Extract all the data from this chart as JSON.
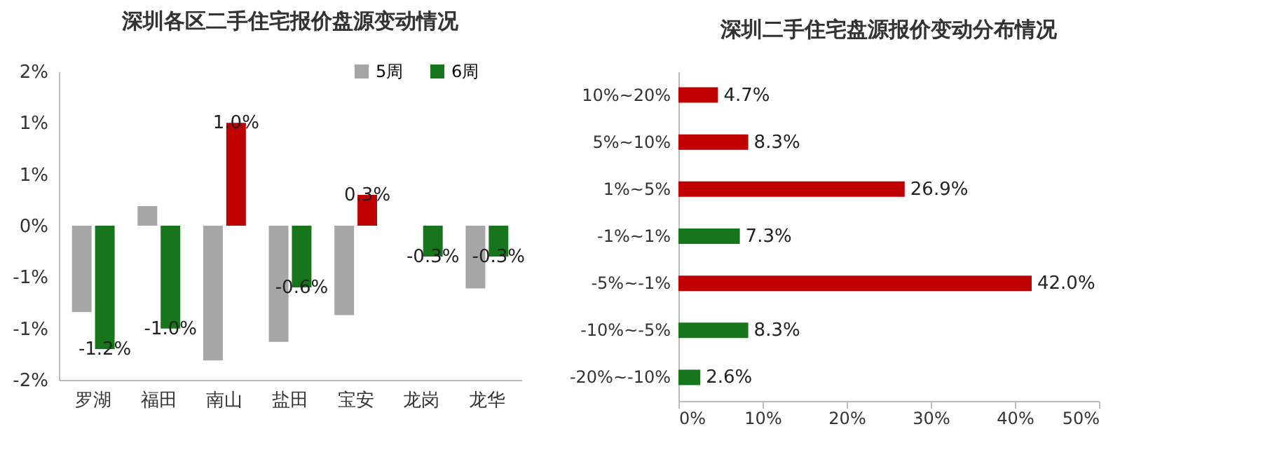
{
  "chart_data": [
    {
      "type": "bar",
      "title": "深圳各区二手住宅报价盘源变动情况",
      "categories": [
        "罗湖",
        "福田",
        "南山",
        "盐田",
        "宝安",
        "龙岗",
        "龙华"
      ],
      "series": [
        {
          "name": "5周",
          "color": "#a6a6a6",
          "values": [
            -0.84,
            0.19,
            -1.31,
            -1.13,
            -0.87,
            null,
            -0.61
          ]
        },
        {
          "name": "6周",
          "color": "#17761c",
          "colors": [
            "#17761c",
            "#17761c",
            "#c00000",
            "#17761c",
            "#c00000",
            "#17761c",
            "#17761c"
          ],
          "values": [
            -1.2,
            -1.0,
            1.0,
            -0.6,
            0.3,
            -0.3,
            -0.3
          ],
          "value_labels": [
            "-1.2%",
            "-1.0%",
            "1.0%",
            "-0.6%",
            "0.3%",
            "-0.3%",
            "-0.3%"
          ]
        }
      ],
      "ylim": [
        -1.5,
        1.5
      ],
      "yticks": [
        {
          "value": -1.5,
          "label": "-2%"
        },
        {
          "value": -1.0,
          "label": "-1%"
        },
        {
          "value": -0.5,
          "label": "-1%"
        },
        {
          "value": 0,
          "label": "0%"
        },
        {
          "value": 0.5,
          "label": "1%"
        },
        {
          "value": 1.0,
          "label": "1%"
        },
        {
          "value": 1.5,
          "label": "2%"
        }
      ],
      "legend": "top right",
      "grid": false
    },
    {
      "type": "bar",
      "orientation": "horizontal",
      "title": "深圳二手住宅盘源报价变动分布情况",
      "categories": [
        "10%~20%",
        "5%~10%",
        "1%~5%",
        "-1%~1%",
        "-5%~-1%",
        "-10%~-5%",
        "-20%~-10%"
      ],
      "values": [
        4.7,
        8.3,
        26.9,
        7.3,
        42.0,
        8.3,
        2.6
      ],
      "colors": [
        "#c00000",
        "#c00000",
        "#c00000",
        "#17761c",
        "#c00000",
        "#17761c",
        "#17761c"
      ],
      "value_labels": [
        "4.7%",
        "8.3%",
        "26.9%",
        "7.3%",
        "42.0%",
        "8.3%",
        "2.6%"
      ],
      "xlim": [
        0,
        50
      ],
      "xticks": [
        {
          "value": 0,
          "label": "0%"
        },
        {
          "value": 10,
          "label": "10%"
        },
        {
          "value": 20,
          "label": "20%"
        },
        {
          "value": 30,
          "label": "30%"
        },
        {
          "value": 40,
          "label": "40%"
        },
        {
          "value": 50,
          "label": "50%"
        }
      ],
      "grid": false
    }
  ]
}
